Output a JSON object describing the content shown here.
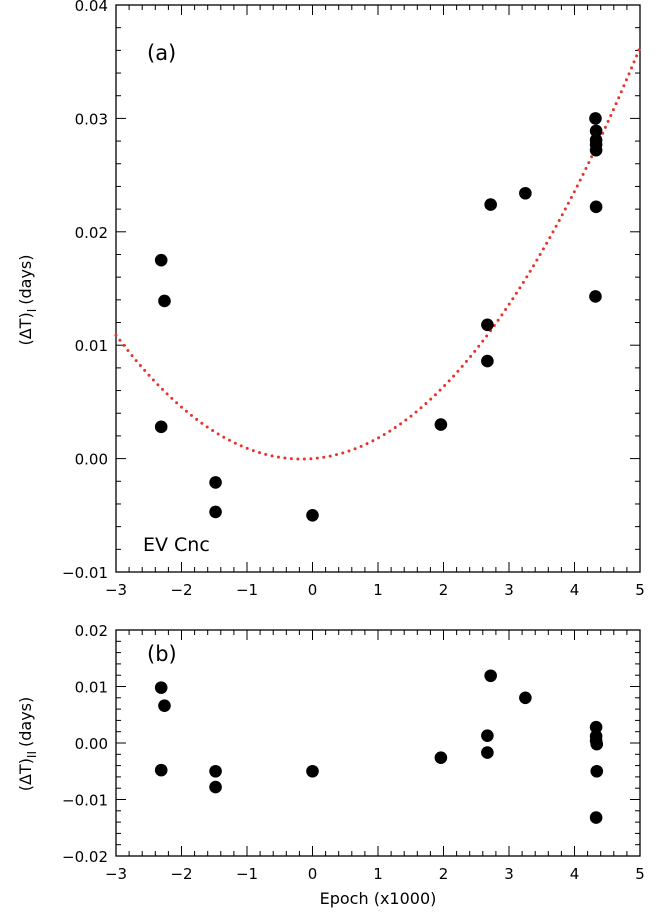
{
  "chart_data": [
    {
      "type": "scatter",
      "panel_label": "(a)",
      "annotation": "EV Cnc",
      "ylabel": "(ΔT)",
      "ylabel_subscript": "I",
      "ylabel_unit": "(days)",
      "xlim": [
        -3,
        5
      ],
      "ylim": [
        -0.01,
        0.04
      ],
      "x_ticks": [
        -3,
        -2,
        -1,
        0,
        1,
        2,
        3,
        4,
        5
      ],
      "x_tick_labels": [
        "−3",
        "−2",
        "−1",
        "0",
        "1",
        "2",
        "3",
        "4",
        "5"
      ],
      "y_ticks": [
        -0.01,
        0.0,
        0.01,
        0.02,
        0.03,
        0.04
      ],
      "y_tick_labels": [
        "−0.01",
        "0.00",
        "0.01",
        "0.02",
        "0.03",
        "0.04"
      ],
      "points": [
        {
          "x": -2.31,
          "y": 0.0175
        },
        {
          "x": -2.26,
          "y": 0.0139
        },
        {
          "x": -2.31,
          "y": 0.0028
        },
        {
          "x": -1.48,
          "y": -0.0021
        },
        {
          "x": -1.48,
          "y": -0.0047
        },
        {
          "x": 0.0,
          "y": -0.005
        },
        {
          "x": 1.96,
          "y": 0.003
        },
        {
          "x": 2.67,
          "y": 0.0118
        },
        {
          "x": 2.67,
          "y": 0.0086
        },
        {
          "x": 2.72,
          "y": 0.0224
        },
        {
          "x": 3.25,
          "y": 0.0234
        },
        {
          "x": 4.32,
          "y": 0.03
        },
        {
          "x": 4.33,
          "y": 0.0289
        },
        {
          "x": 4.33,
          "y": 0.0281
        },
        {
          "x": 4.33,
          "y": 0.0277
        },
        {
          "x": 4.33,
          "y": 0.0272
        },
        {
          "x": 4.33,
          "y": 0.0222
        },
        {
          "x": 4.32,
          "y": 0.0143
        }
      ],
      "fit": {
        "style": "dotted",
        "color": "#e8322a",
        "form": "y = a*x^2 + b*x",
        "a": 0.00136,
        "b": 0.00045
      },
      "marker_color": "#000000"
    },
    {
      "type": "scatter",
      "panel_label": "(b)",
      "ylabel": "(ΔT)",
      "ylabel_subscript": "II",
      "ylabel_unit": "(days)",
      "xlabel": "Epoch (x1000)",
      "xlim": [
        -3,
        5
      ],
      "ylim": [
        -0.02,
        0.02
      ],
      "x_ticks": [
        -3,
        -2,
        -1,
        0,
        1,
        2,
        3,
        4,
        5
      ],
      "x_tick_labels": [
        "−3",
        "−2",
        "−1",
        "0",
        "1",
        "2",
        "3",
        "4",
        "5"
      ],
      "y_ticks": [
        -0.02,
        -0.01,
        0.0,
        0.01,
        0.02
      ],
      "y_tick_labels": [
        "−0.02",
        "−0.01",
        "0.00",
        "0.01",
        "0.02"
      ],
      "points": [
        {
          "x": -2.31,
          "y": 0.0098
        },
        {
          "x": -2.26,
          "y": 0.0066
        },
        {
          "x": -2.31,
          "y": -0.0048
        },
        {
          "x": -1.48,
          "y": -0.005
        },
        {
          "x": -1.48,
          "y": -0.0078
        },
        {
          "x": 0.0,
          "y": -0.005
        },
        {
          "x": 1.96,
          "y": -0.0026
        },
        {
          "x": 2.67,
          "y": 0.0013
        },
        {
          "x": 2.67,
          "y": -0.0017
        },
        {
          "x": 2.72,
          "y": 0.0119
        },
        {
          "x": 3.25,
          "y": 0.008
        },
        {
          "x": 4.33,
          "y": 0.0028
        },
        {
          "x": 4.33,
          "y": 0.0012
        },
        {
          "x": 4.33,
          "y": 0.0004
        },
        {
          "x": 4.34,
          "y": -0.0002
        },
        {
          "x": 4.34,
          "y": -0.005
        },
        {
          "x": 4.33,
          "y": -0.0132
        }
      ],
      "marker_color": "#000000"
    }
  ]
}
